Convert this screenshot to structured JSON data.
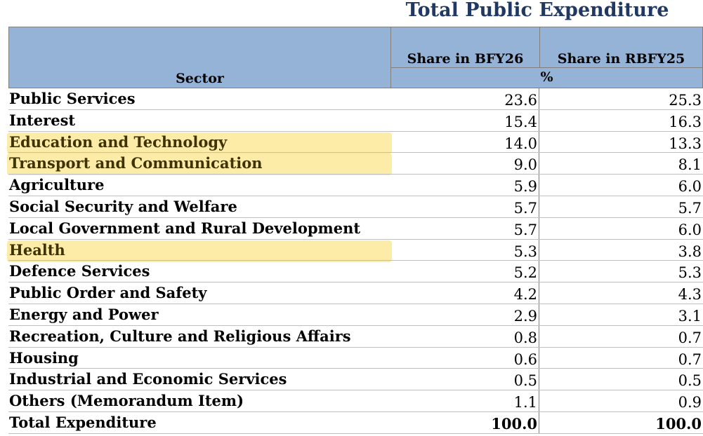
{
  "title": "Total Public Expenditure",
  "header": {
    "sector": "Sector",
    "col1": "Share in BFY26",
    "col2": "Share in RBFY25",
    "unit": "%"
  },
  "rows": [
    {
      "sector": "Public Services",
      "bfy26": "23.6",
      "rbfy25": "25.3",
      "highlight": false
    },
    {
      "sector": "Interest",
      "bfy26": "15.4",
      "rbfy25": "16.3",
      "highlight": false
    },
    {
      "sector": "Education and Technology",
      "bfy26": "14.0",
      "rbfy25": "13.3",
      "highlight": true
    },
    {
      "sector": "Transport and Communication",
      "bfy26": "9.0",
      "rbfy25": "8.1",
      "highlight": true
    },
    {
      "sector": "Agriculture",
      "bfy26": "5.9",
      "rbfy25": "6.0",
      "highlight": false
    },
    {
      "sector": "Social Security and Welfare",
      "bfy26": "5.7",
      "rbfy25": "5.7",
      "highlight": false
    },
    {
      "sector": "Local Government and Rural Development",
      "bfy26": "5.7",
      "rbfy25": "6.0",
      "highlight": false
    },
    {
      "sector": "Health",
      "bfy26": "5.3",
      "rbfy25": "3.8",
      "highlight": true
    },
    {
      "sector": "Defence Services",
      "bfy26": "5.2",
      "rbfy25": "5.3",
      "highlight": false
    },
    {
      "sector": "Public Order and Safety",
      "bfy26": "4.2",
      "rbfy25": "4.3",
      "highlight": false
    },
    {
      "sector": "Energy and Power",
      "bfy26": "2.9",
      "rbfy25": "3.1",
      "highlight": false
    },
    {
      "sector": "Recreation, Culture and Religious Affairs",
      "bfy26": "0.8",
      "rbfy25": "0.7",
      "highlight": false
    },
    {
      "sector": "Housing",
      "bfy26": "0.6",
      "rbfy25": "0.7",
      "highlight": false
    },
    {
      "sector": "Industrial and Economic Services",
      "bfy26": "0.5",
      "rbfy25": "0.5",
      "highlight": false
    },
    {
      "sector": "Others (Memorandum Item)",
      "bfy26": "1.1",
      "rbfy25": "0.9",
      "highlight": false
    },
    {
      "sector": "Total Expenditure",
      "bfy26": "100.0",
      "rbfy25": "100.0",
      "highlight": false,
      "total": true
    }
  ],
  "colors": {
    "title": "#1f3864",
    "header_bg": "#95b3d7",
    "highlight": "#fbe58a"
  }
}
